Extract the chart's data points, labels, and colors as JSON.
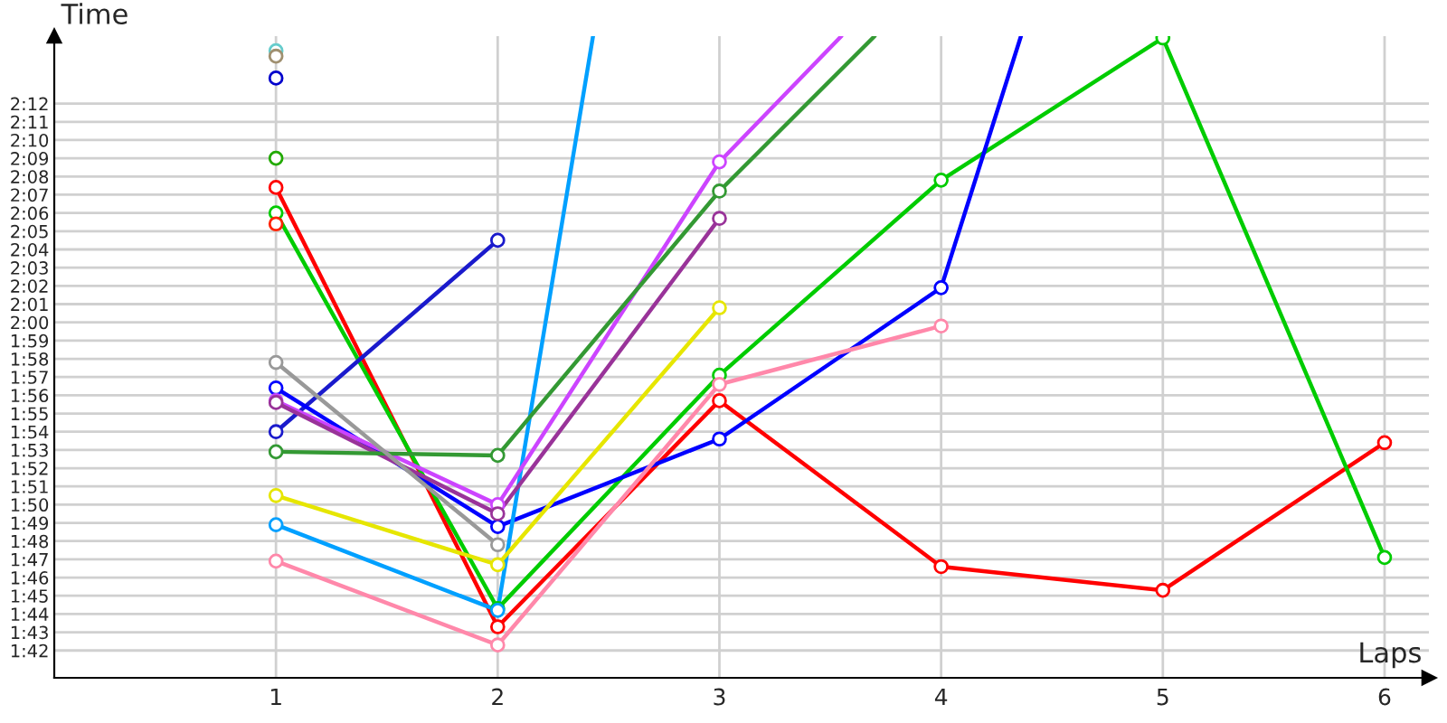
{
  "chart_data": {
    "type": "line",
    "xlabel": "Laps",
    "ylabel": "Time",
    "x": [
      1,
      2,
      3,
      4,
      5,
      6
    ],
    "xlim": [
      0,
      6.2
    ],
    "xticks": [
      1,
      2,
      3,
      4,
      5,
      6
    ],
    "ylim": [
      100.5,
      135.7
    ],
    "yticks": [
      {
        "value": 102,
        "label": "1:42"
      },
      {
        "value": 103,
        "label": "1:43"
      },
      {
        "value": 104,
        "label": "1:44"
      },
      {
        "value": 105,
        "label": "1:45"
      },
      {
        "value": 106,
        "label": "1:46"
      },
      {
        "value": 107,
        "label": "1:47"
      },
      {
        "value": 108,
        "label": "1:48"
      },
      {
        "value": 109,
        "label": "1:49"
      },
      {
        "value": 110,
        "label": "1:50"
      },
      {
        "value": 111,
        "label": "1:51"
      },
      {
        "value": 112,
        "label": "1:52"
      },
      {
        "value": 113,
        "label": "1:53"
      },
      {
        "value": 114,
        "label": "1:54"
      },
      {
        "value": 115,
        "label": "1:55"
      },
      {
        "value": 116,
        "label": "1:56"
      },
      {
        "value": 117,
        "label": "1:57"
      },
      {
        "value": 118,
        "label": "1:58"
      },
      {
        "value": 119,
        "label": "1:59"
      },
      {
        "value": 120,
        "label": "2:00"
      },
      {
        "value": 121,
        "label": "2:01"
      },
      {
        "value": 122,
        "label": "2:02"
      },
      {
        "value": 123,
        "label": "2:03"
      },
      {
        "value": 124,
        "label": "2:04"
      },
      {
        "value": 125,
        "label": "2:05"
      },
      {
        "value": 126,
        "label": "2:06"
      },
      {
        "value": 127,
        "label": "2:07"
      },
      {
        "value": 128,
        "label": "2:08"
      },
      {
        "value": 129,
        "label": "2:09"
      },
      {
        "value": 130,
        "label": "2:10"
      },
      {
        "value": 131,
        "label": "2:11"
      },
      {
        "value": 132,
        "label": "2:12"
      }
    ],
    "grid": true,
    "marker": "circle",
    "line_style": "solid",
    "legend": false,
    "series": [
      {
        "color": "#ff0000",
        "values": [
          127.4,
          103.3,
          115.7,
          106.6,
          105.3,
          113.4
        ]
      },
      {
        "color": "#00cc00",
        "values": [
          126.0,
          104.3,
          117.1,
          127.8,
          135.6,
          107.1
        ]
      },
      {
        "color": "#1a1acc",
        "values": [
          114.0,
          124.5,
          null,
          null,
          null,
          null
        ]
      },
      {
        "color": "#0000ff",
        "x": [
          1,
          2,
          3,
          4,
          4.36
        ],
        "values": [
          116.4,
          108.8,
          113.6,
          121.9,
          135.7
        ]
      },
      {
        "color": "#00a0ff",
        "x": [
          1,
          2,
          2.43
        ],
        "values": [
          108.9,
          104.2,
          135.7
        ]
      },
      {
        "color": "#cc44ff",
        "x": [
          1,
          2,
          3,
          3.55
        ],
        "values": [
          115.7,
          110.0,
          128.8,
          135.7
        ]
      },
      {
        "color": "#993399",
        "values": [
          115.6,
          109.5,
          125.7,
          null,
          null,
          null
        ]
      },
      {
        "color": "#339933",
        "x": [
          1,
          2,
          3,
          3.7
        ],
        "values": [
          112.9,
          112.7,
          127.2,
          135.7
        ]
      },
      {
        "color": "#999999",
        "values": [
          117.8,
          107.8,
          null,
          null,
          null,
          null
        ]
      },
      {
        "color": "#e6e600",
        "values": [
          110.5,
          106.7,
          120.8,
          null,
          null,
          null
        ]
      },
      {
        "color": "#ff88aa",
        "values": [
          106.9,
          102.3,
          116.6,
          119.8,
          null,
          null
        ]
      },
      {
        "type": "scatter",
        "color": "#66cccc",
        "values": [
          134.9,
          null,
          null,
          null,
          null,
          null
        ]
      },
      {
        "type": "scatter",
        "color": "#a09070",
        "values": [
          134.6,
          null,
          null,
          null,
          null,
          null
        ]
      },
      {
        "type": "scatter",
        "color": "#0000cc",
        "values": [
          133.4,
          null,
          null,
          null,
          null,
          null
        ]
      },
      {
        "type": "scatter",
        "color": "#22aa00",
        "values": [
          129.0,
          null,
          null,
          null,
          null,
          null
        ]
      },
      {
        "type": "scatter",
        "color": "#ff2200",
        "values": [
          125.4,
          null,
          null,
          null,
          null,
          null
        ]
      }
    ]
  }
}
